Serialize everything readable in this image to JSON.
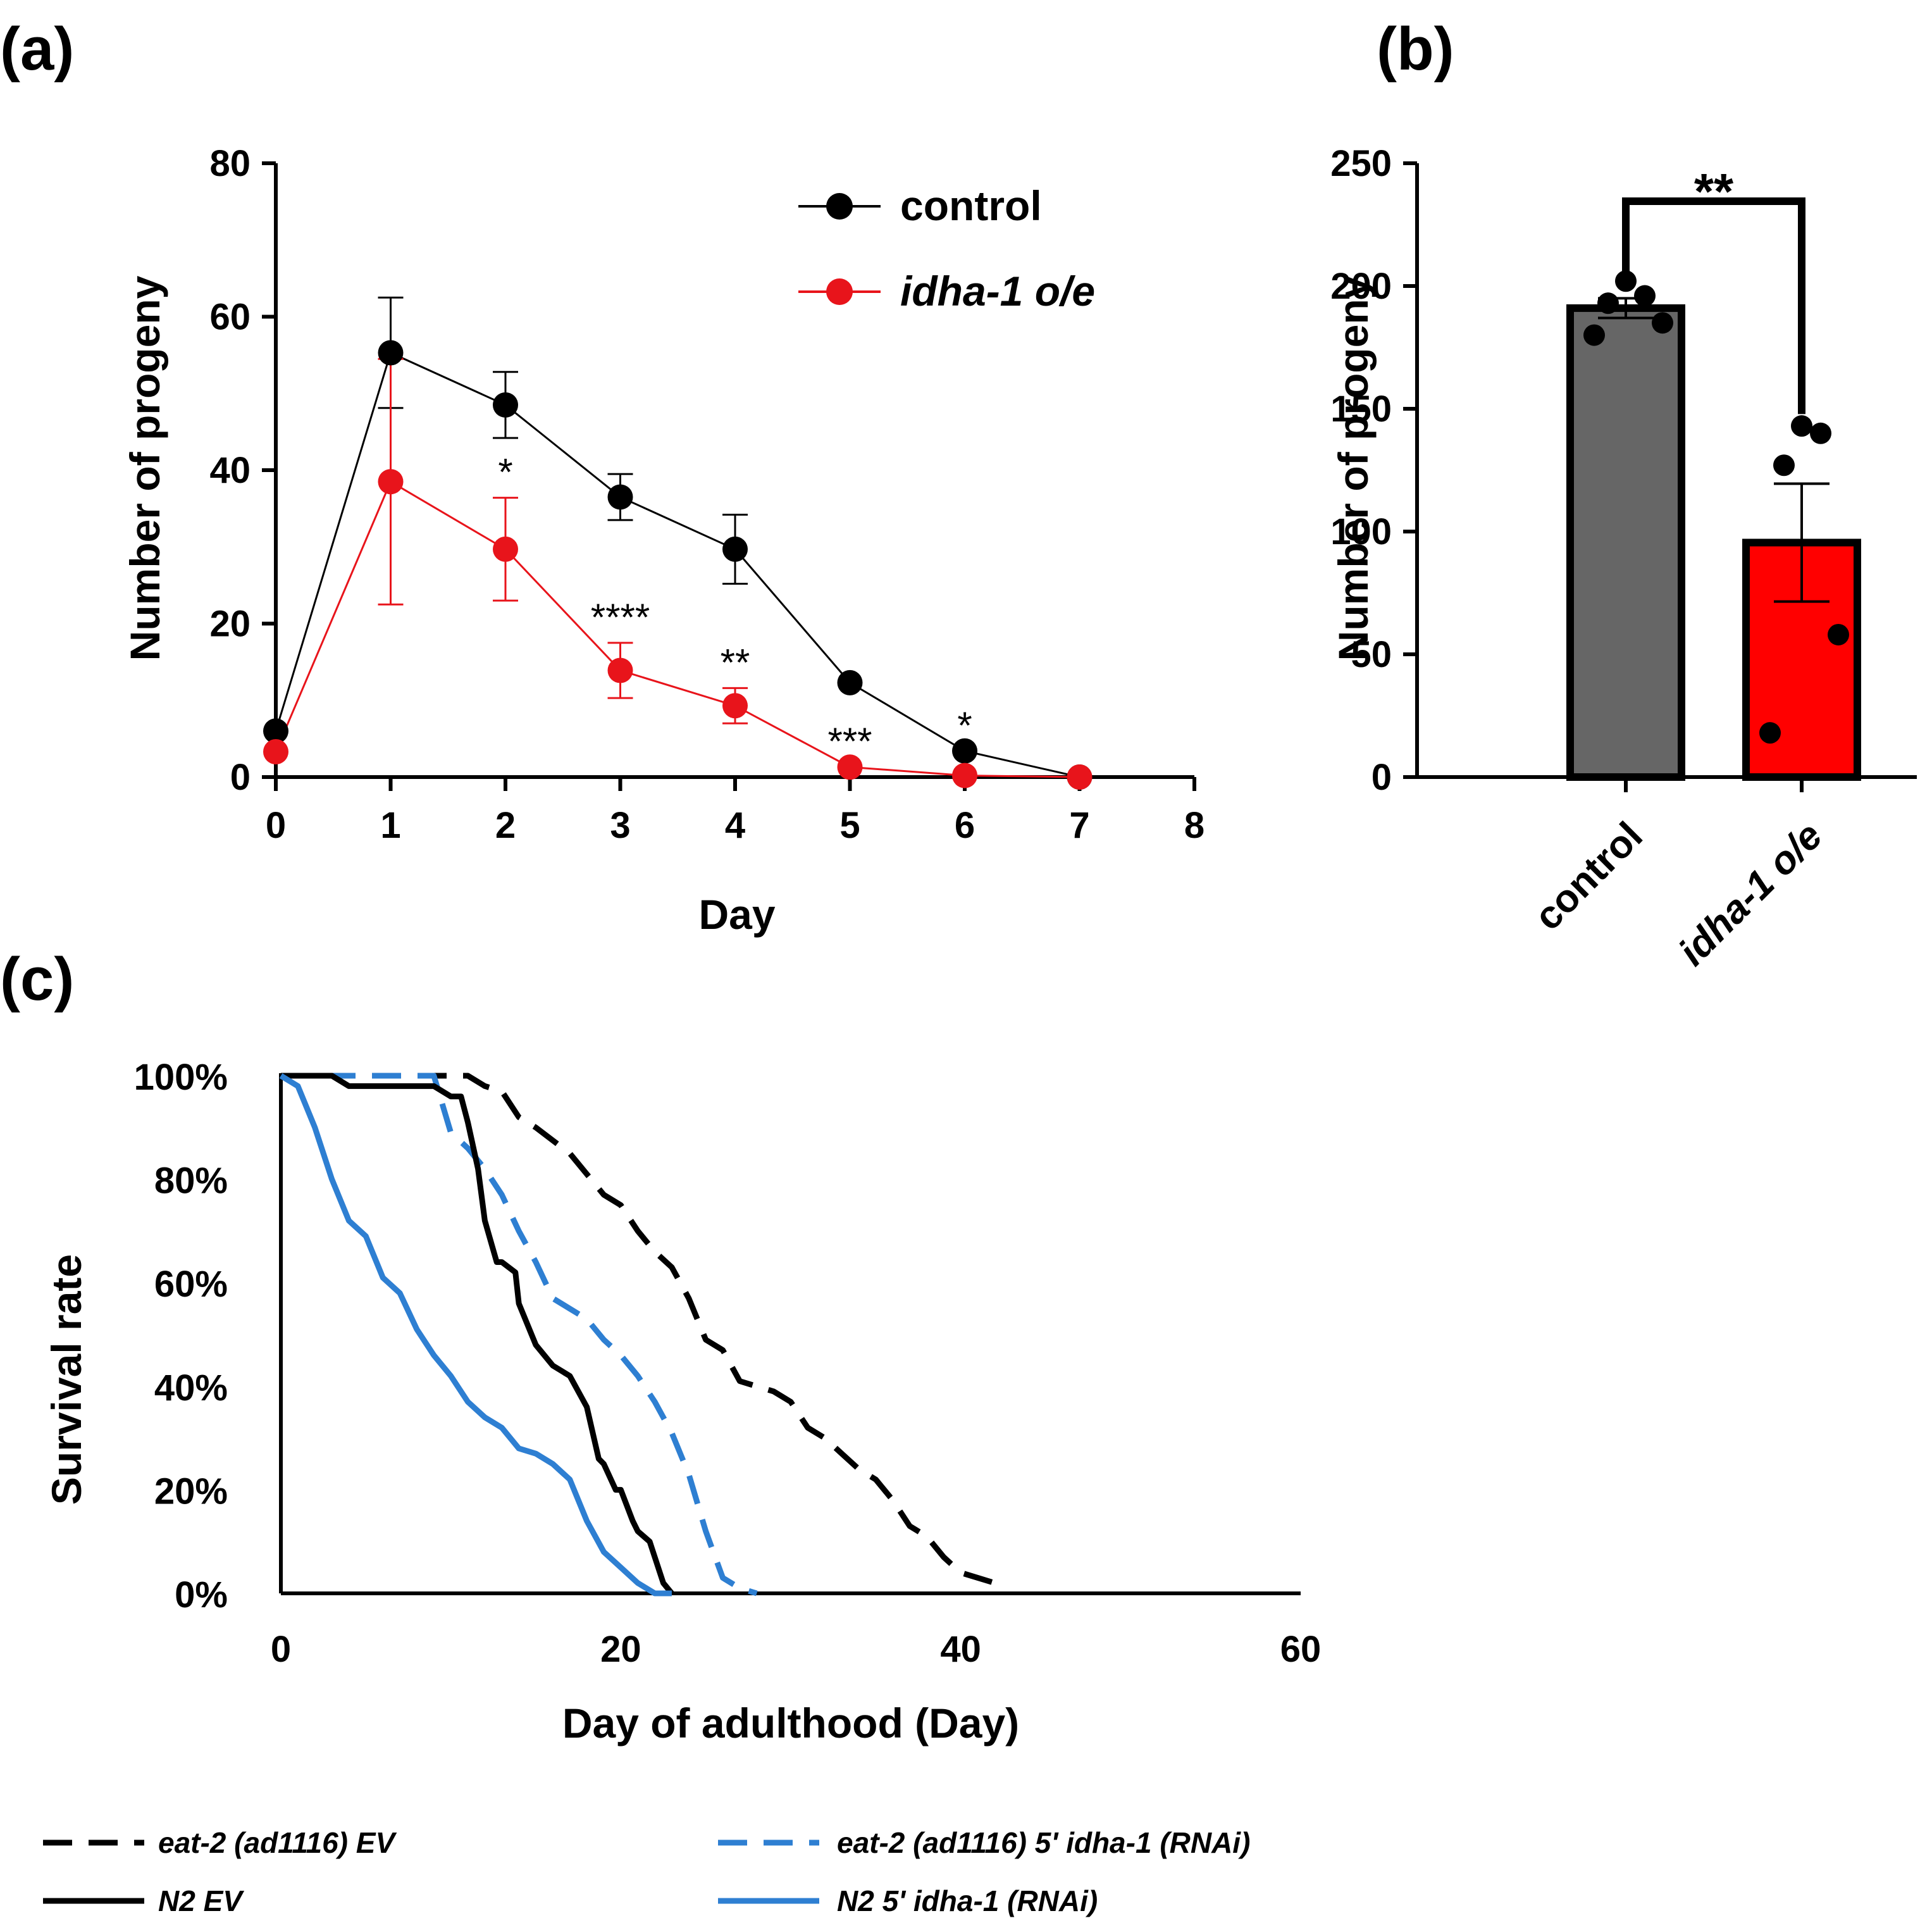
{
  "chart_data": [
    {
      "panel": "(a)",
      "type": "line",
      "xlabel": "Day",
      "ylabel": "Number of progeny",
      "xlim": [
        0,
        8
      ],
      "ylim": [
        0,
        80
      ],
      "xticks": [
        "0",
        "1",
        "2",
        "3",
        "4",
        "5",
        "6",
        "7",
        "8"
      ],
      "yticks": [
        "0",
        "20",
        "40",
        "60",
        "80"
      ],
      "x": [
        0,
        1,
        2,
        3,
        4,
        5,
        6,
        7
      ],
      "series": [
        {
          "name": "control",
          "color": "#000000",
          "values": [
            6,
            55.3,
            48.5,
            36.5,
            29.7,
            12.3,
            3.4,
            0
          ],
          "errors": [
            0,
            7.2,
            4.3,
            3,
            4.5,
            0,
            0,
            0
          ]
        },
        {
          "name": "idha-1 o/e",
          "color": "#e8141b",
          "values": [
            3.3,
            38.5,
            29.7,
            13.9,
            9.3,
            1.3,
            0.2,
            0
          ],
          "errors": [
            0,
            16,
            6.7,
            3.6,
            2.3,
            0,
            0,
            0
          ]
        }
      ],
      "annotations": [
        {
          "x": 2,
          "text": "*"
        },
        {
          "x": 3,
          "text": "****"
        },
        {
          "x": 4,
          "text": "**"
        },
        {
          "x": 5,
          "text": "***"
        },
        {
          "x": 6,
          "text": "*"
        }
      ]
    },
    {
      "panel": "(b)",
      "type": "bar",
      "ylabel": "Number of progeny",
      "ylim": [
        0,
        250
      ],
      "yticks": [
        "0",
        "50",
        "100",
        "150",
        "200",
        "250"
      ],
      "categories": [
        "control",
        "idha-1 o/e"
      ],
      "values": [
        191,
        95.5
      ],
      "errors": [
        4,
        24
      ],
      "colors": [
        "#666666",
        "#ff0000"
      ],
      "points": [
        [
          202,
          196,
          193,
          185,
          180
        ],
        [
          143,
          140,
          127,
          58,
          18
        ]
      ],
      "significance": "**"
    },
    {
      "panel": "(c)",
      "type": "line",
      "xlabel": "Day of adulthood (Day)",
      "ylabel": "Survival rate",
      "xlim": [
        0,
        60
      ],
      "ylim": [
        0,
        100
      ],
      "xticks": [
        "0",
        "20",
        "40",
        "60"
      ],
      "yticks": [
        "0%",
        "20%",
        "40%",
        "60%",
        "80%",
        "100%"
      ],
      "series": [
        {
          "name": "eat-2 (ad1116) EV",
          "color": "#000000",
          "dash": true,
          "x": [
            0,
            11,
            12,
            13,
            14,
            15,
            17,
            18,
            19,
            20,
            21,
            22,
            23,
            24,
            25,
            26,
            27,
            29,
            30,
            31,
            32,
            33,
            34,
            35,
            36,
            37,
            38,
            39,
            40,
            41,
            42,
            42.5
          ],
          "y": [
            100,
            100,
            98,
            97,
            92,
            90,
            85,
            81,
            77,
            75,
            70,
            66,
            63,
            57,
            49,
            47,
            41,
            39,
            37,
            32,
            30,
            27,
            24,
            22,
            18,
            13,
            11,
            7,
            4,
            3,
            2,
            0
          ]
        },
        {
          "name": "eat-2 (ad1116) 5' idha-1 (RNAi)",
          "color": "#2e7fd2",
          "dash": true,
          "x": [
            0,
            9,
            10,
            11,
            12,
            13,
            14,
            15,
            16,
            17,
            18,
            19,
            20,
            21,
            22,
            23,
            24,
            25,
            26,
            27,
            28
          ],
          "y": [
            100,
            100,
            89,
            86,
            82,
            77,
            70,
            64,
            57,
            55,
            53,
            49,
            46,
            42,
            37,
            31,
            23,
            12,
            3,
            1,
            0
          ]
        },
        {
          "name": "N2 EV",
          "color": "#000000",
          "dash": false,
          "x": [
            0,
            3,
            4,
            5,
            8,
            9,
            10,
            10.6,
            11,
            11.6,
            12,
            12.7,
            13,
            13.8,
            14,
            15,
            16,
            17,
            18,
            18.7,
            19,
            19.7,
            20,
            20.7,
            21,
            21.7,
            22,
            22.5,
            23
          ],
          "y": [
            100,
            100,
            98,
            98,
            98,
            98,
            96,
            96,
            91,
            82,
            72,
            64,
            64,
            62,
            56,
            48,
            44,
            42,
            36,
            26,
            25,
            20,
            20,
            14,
            12,
            10,
            7,
            2,
            0
          ]
        },
        {
          "name": "N2 5' idha-1 (RNAi)",
          "color": "#2e7fd2",
          "dash": false,
          "x": [
            0,
            1,
            2,
            3,
            4,
            5,
            6,
            7,
            8,
            9,
            10,
            11,
            12,
            13,
            14,
            15,
            16,
            17,
            18,
            19,
            20,
            21,
            22,
            23
          ],
          "y": [
            100,
            98,
            90,
            80,
            72,
            69,
            61,
            58,
            51,
            46,
            42,
            37,
            34,
            32,
            28,
            27,
            25,
            22,
            14,
            8,
            5,
            2,
            0,
            0
          ]
        }
      ]
    }
  ]
}
